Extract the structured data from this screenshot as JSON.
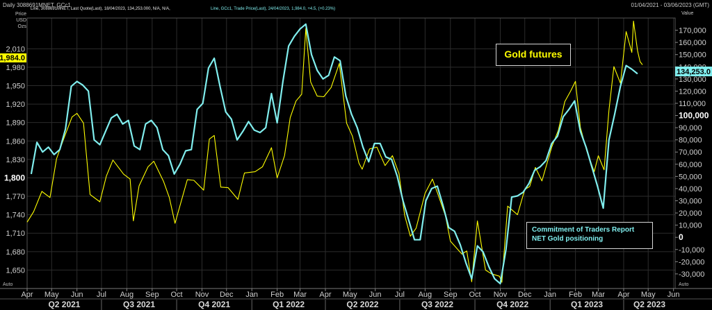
{
  "header": {
    "title": "Daily 3088691MNET, GCc1",
    "series1": "Line, 3088691MNET, Last Quote(Last), 18/04/2023, 134,253.000, N/A, N/A,",
    "series2": "Line, GCc1, Trade Price(Last), 24/04/2023, 1,984.0, +4.5, (+0.23%)",
    "date_range": "01/04/2021 - 03/06/2023 (GMT)",
    "left_units": [
      "Price",
      "USD",
      "Ozs"
    ],
    "right_unit": "Value",
    "auto": "Auto"
  },
  "annotations": {
    "gold_label": "Gold futures",
    "cot_line1": "Commitment of Traders Report",
    "cot_line2": "NET Gold positioning",
    "last_price": "1,984.0",
    "last_cot": "134,253.0"
  },
  "colors": {
    "gold": "#ffff00",
    "cot": "#80eeee",
    "background": "#000000",
    "grid": "#2c2c2c"
  },
  "chart_data": {
    "type": "line",
    "x_tick_labels": [
      "Apr",
      "May",
      "Jun",
      "Jul",
      "Aug",
      "Sep",
      "Oct",
      "Nov",
      "Dec",
      "Jan",
      "Feb",
      "Mar",
      "Apr",
      "May",
      "Jun",
      "Jul",
      "Aug",
      "Sep",
      "Oct",
      "Nov",
      "Dec",
      "Jan",
      "Feb",
      "Mar",
      "Apr",
      "May",
      "Jun"
    ],
    "quarters": [
      "Q2 2021",
      "Q3 2021",
      "Q4 2021",
      "Q1 2022",
      "Q2 2022",
      "Q3 2022",
      "Q4 2022",
      "Q1 2023",
      "Q2 2023"
    ],
    "xlim": [
      "2021-04-01",
      "2023-06-03"
    ],
    "left_axis": {
      "label": "Price USD Ozs",
      "ylim": [
        1620,
        2060
      ],
      "ticks": [
        2010,
        1980,
        1950,
        1920,
        1890,
        1860,
        1830,
        1800,
        1770,
        1740,
        1710,
        1680,
        1650
      ],
      "tick_labels": [
        "2,010",
        "1,980",
        "1,950",
        "1,920",
        "1,890",
        "1,860",
        "1,830",
        "1,800",
        "1,770",
        "1,740",
        "1,710",
        "1,680",
        "1,650"
      ],
      "bold_ticks": [
        "1,800"
      ]
    },
    "right_axis": {
      "label": "Value",
      "ylim": [
        -42000,
        180000
      ],
      "ticks": [
        170000,
        160000,
        150000,
        140000,
        130000,
        120000,
        110000,
        100000,
        90000,
        80000,
        70000,
        60000,
        50000,
        40000,
        30000,
        20000,
        10000,
        0,
        -10000,
        -20000,
        -30000
      ],
      "tick_labels": [
        "170,000",
        "160,000",
        "150,000",
        "140,000",
        "130,000",
        "120,000",
        "110,000",
        "100,000",
        "90,000",
        "80,000",
        "70,000",
        "60,000",
        "50,000",
        "40,000",
        "30,000",
        "20,000",
        "10,000",
        "0",
        "-10,000",
        "-20,000",
        "-30,000"
      ],
      "bold_ticks": [
        "100,000",
        "0"
      ]
    },
    "series": [
      {
        "name": "GCc1",
        "axis": "left",
        "color": "#ffff00",
        "points": [
          [
            "2021-04-01",
            1728
          ],
          [
            "2021-04-09",
            1745
          ],
          [
            "2021-04-19",
            1778
          ],
          [
            "2021-04-29",
            1768
          ],
          [
            "2021-05-07",
            1831
          ],
          [
            "2021-05-17",
            1868
          ],
          [
            "2021-05-26",
            1899
          ],
          [
            "2021-06-01",
            1905
          ],
          [
            "2021-06-09",
            1889
          ],
          [
            "2021-06-17",
            1773
          ],
          [
            "2021-06-29",
            1761
          ],
          [
            "2021-07-07",
            1803
          ],
          [
            "2021-07-15",
            1829
          ],
          [
            "2021-07-28",
            1806
          ],
          [
            "2021-08-05",
            1798
          ],
          [
            "2021-08-09",
            1730
          ],
          [
            "2021-08-16",
            1787
          ],
          [
            "2021-08-27",
            1818
          ],
          [
            "2021-09-03",
            1827
          ],
          [
            "2021-09-15",
            1794
          ],
          [
            "2021-09-22",
            1768
          ],
          [
            "2021-09-29",
            1726
          ],
          [
            "2021-10-14",
            1797
          ],
          [
            "2021-10-22",
            1796
          ],
          [
            "2021-11-03",
            1780
          ],
          [
            "2021-11-10",
            1863
          ],
          [
            "2021-11-16",
            1869
          ],
          [
            "2021-11-24",
            1785
          ],
          [
            "2021-12-03",
            1784
          ],
          [
            "2021-12-15",
            1765
          ],
          [
            "2021-12-23",
            1808
          ],
          [
            "2022-01-05",
            1810
          ],
          [
            "2022-01-14",
            1818
          ],
          [
            "2022-01-25",
            1849
          ],
          [
            "2022-02-01",
            1800
          ],
          [
            "2022-02-10",
            1836
          ],
          [
            "2022-02-17",
            1898
          ],
          [
            "2022-02-24",
            1925
          ],
          [
            "2022-03-03",
            1936
          ],
          [
            "2022-03-08",
            2043
          ],
          [
            "2022-03-14",
            1956
          ],
          [
            "2022-03-22",
            1933
          ],
          [
            "2022-03-30",
            1932
          ],
          [
            "2022-04-08",
            1947
          ],
          [
            "2022-04-18",
            1986
          ],
          [
            "2022-04-27",
            1889
          ],
          [
            "2022-05-04",
            1868
          ],
          [
            "2022-05-12",
            1824
          ],
          [
            "2022-05-16",
            1814
          ],
          [
            "2022-05-25",
            1847
          ],
          [
            "2022-06-03",
            1850
          ],
          [
            "2022-06-13",
            1820
          ],
          [
            "2022-06-22",
            1836
          ],
          [
            "2022-06-30",
            1807
          ],
          [
            "2022-07-07",
            1739
          ],
          [
            "2022-07-14",
            1705
          ],
          [
            "2022-07-21",
            1718
          ],
          [
            "2022-08-01",
            1775
          ],
          [
            "2022-08-10",
            1798
          ],
          [
            "2022-08-16",
            1776
          ],
          [
            "2022-08-26",
            1738
          ],
          [
            "2022-09-01",
            1697
          ],
          [
            "2022-09-15",
            1676
          ],
          [
            "2022-09-21",
            1681
          ],
          [
            "2022-09-27",
            1631
          ],
          [
            "2022-10-04",
            1730
          ],
          [
            "2022-10-14",
            1650
          ],
          [
            "2022-10-21",
            1644
          ],
          [
            "2022-10-31",
            1640
          ],
          [
            "2022-11-03",
            1630
          ],
          [
            "2022-11-10",
            1754
          ],
          [
            "2022-11-22",
            1740
          ],
          [
            "2022-12-01",
            1781
          ],
          [
            "2022-12-07",
            1786
          ],
          [
            "2022-12-14",
            1817
          ],
          [
            "2022-12-22",
            1795
          ],
          [
            "2023-01-03",
            1850
          ],
          [
            "2023-01-11",
            1877
          ],
          [
            "2023-01-19",
            1924
          ],
          [
            "2023-01-26",
            1941
          ],
          [
            "2023-02-01",
            1957
          ],
          [
            "2023-02-07",
            1882
          ],
          [
            "2023-02-15",
            1843
          ],
          [
            "2023-02-24",
            1810
          ],
          [
            "2023-03-01",
            1836
          ],
          [
            "2023-03-08",
            1813
          ],
          [
            "2023-03-14",
            1910
          ],
          [
            "2023-03-20",
            1981
          ],
          [
            "2023-03-28",
            1954
          ],
          [
            "2023-04-04",
            2038
          ],
          [
            "2023-04-11",
            2004
          ],
          [
            "2023-04-13",
            2055
          ],
          [
            "2023-04-18",
            2007
          ],
          [
            "2023-04-21",
            1989
          ],
          [
            "2023-04-24",
            1984
          ]
        ]
      },
      {
        "name": "3088691MNET",
        "axis": "right",
        "color": "#80eeee",
        "points": [
          [
            "2021-04-06",
            52000
          ],
          [
            "2021-04-13",
            78000
          ],
          [
            "2021-04-20",
            70000
          ],
          [
            "2021-04-27",
            74000
          ],
          [
            "2021-05-04",
            68000
          ],
          [
            "2021-05-11",
            72000
          ],
          [
            "2021-05-18",
            89000
          ],
          [
            "2021-05-25",
            124000
          ],
          [
            "2021-06-01",
            128000
          ],
          [
            "2021-06-08",
            125000
          ],
          [
            "2021-06-15",
            120000
          ],
          [
            "2021-06-22",
            80000
          ],
          [
            "2021-06-29",
            76000
          ],
          [
            "2021-07-06",
            87000
          ],
          [
            "2021-07-13",
            98000
          ],
          [
            "2021-07-20",
            101000
          ],
          [
            "2021-07-27",
            93000
          ],
          [
            "2021-08-03",
            96000
          ],
          [
            "2021-08-10",
            75000
          ],
          [
            "2021-08-17",
            72000
          ],
          [
            "2021-08-24",
            93000
          ],
          [
            "2021-08-31",
            96000
          ],
          [
            "2021-09-07",
            90000
          ],
          [
            "2021-09-14",
            72000
          ],
          [
            "2021-09-21",
            67000
          ],
          [
            "2021-09-28",
            52000
          ],
          [
            "2021-10-05",
            60000
          ],
          [
            "2021-10-12",
            71000
          ],
          [
            "2021-10-19",
            72000
          ],
          [
            "2021-10-26",
            105000
          ],
          [
            "2021-11-02",
            110000
          ],
          [
            "2021-11-09",
            139000
          ],
          [
            "2021-11-16",
            147000
          ],
          [
            "2021-11-23",
            124000
          ],
          [
            "2021-11-30",
            103000
          ],
          [
            "2021-12-07",
            97000
          ],
          [
            "2021-12-14",
            80000
          ],
          [
            "2021-12-21",
            87000
          ],
          [
            "2021-12-28",
            95000
          ],
          [
            "2022-01-04",
            88000
          ],
          [
            "2022-01-11",
            86000
          ],
          [
            "2022-01-18",
            90000
          ],
          [
            "2022-01-25",
            118000
          ],
          [
            "2022-02-01",
            94000
          ],
          [
            "2022-02-08",
            128000
          ],
          [
            "2022-02-15",
            157000
          ],
          [
            "2022-02-22",
            165000
          ],
          [
            "2022-03-01",
            171000
          ],
          [
            "2022-03-08",
            175000
          ],
          [
            "2022-03-15",
            150000
          ],
          [
            "2022-03-22",
            137000
          ],
          [
            "2022-03-29",
            130000
          ],
          [
            "2022-04-05",
            133000
          ],
          [
            "2022-04-12",
            148000
          ],
          [
            "2022-04-19",
            145000
          ],
          [
            "2022-04-26",
            116000
          ],
          [
            "2022-05-03",
            101000
          ],
          [
            "2022-05-10",
            90000
          ],
          [
            "2022-05-17",
            74000
          ],
          [
            "2022-05-24",
            62000
          ],
          [
            "2022-05-31",
            77000
          ],
          [
            "2022-06-07",
            77000
          ],
          [
            "2022-06-14",
            66000
          ],
          [
            "2022-06-21",
            64000
          ],
          [
            "2022-06-28",
            50000
          ],
          [
            "2022-07-05",
            30000
          ],
          [
            "2022-07-12",
            14000
          ],
          [
            "2022-07-19",
            -2000
          ],
          [
            "2022-07-26",
            -2000
          ],
          [
            "2022-08-02",
            30000
          ],
          [
            "2022-08-09",
            40000
          ],
          [
            "2022-08-16",
            42000
          ],
          [
            "2022-08-23",
            26000
          ],
          [
            "2022-08-30",
            8000
          ],
          [
            "2022-09-06",
            5000
          ],
          [
            "2022-09-13",
            -6000
          ],
          [
            "2022-09-20",
            -21000
          ],
          [
            "2022-09-27",
            -34000
          ],
          [
            "2022-10-04",
            -7000
          ],
          [
            "2022-10-11",
            -12000
          ],
          [
            "2022-10-18",
            -24000
          ],
          [
            "2022-10-25",
            -34000
          ],
          [
            "2022-11-01",
            -38000
          ],
          [
            "2022-11-08",
            -10000
          ],
          [
            "2022-11-15",
            33000
          ],
          [
            "2022-11-22",
            34000
          ],
          [
            "2022-11-29",
            37000
          ],
          [
            "2022-12-06",
            44000
          ],
          [
            "2022-12-13",
            55000
          ],
          [
            "2022-12-20",
            58000
          ],
          [
            "2022-12-27",
            63000
          ],
          [
            "2023-01-03",
            77000
          ],
          [
            "2023-01-10",
            83000
          ],
          [
            "2023-01-17",
            99000
          ],
          [
            "2023-01-24",
            105000
          ],
          [
            "2023-01-31",
            112000
          ],
          [
            "2023-02-07",
            87000
          ],
          [
            "2023-02-14",
            74000
          ],
          [
            "2023-02-21",
            58000
          ],
          [
            "2023-02-28",
            42000
          ],
          [
            "2023-03-07",
            24000
          ],
          [
            "2023-03-14",
            80000
          ],
          [
            "2023-03-21",
            101000
          ],
          [
            "2023-03-28",
            124000
          ],
          [
            "2023-04-04",
            141000
          ],
          [
            "2023-04-11",
            138000
          ],
          [
            "2023-04-18",
            134253
          ]
        ]
      }
    ]
  }
}
